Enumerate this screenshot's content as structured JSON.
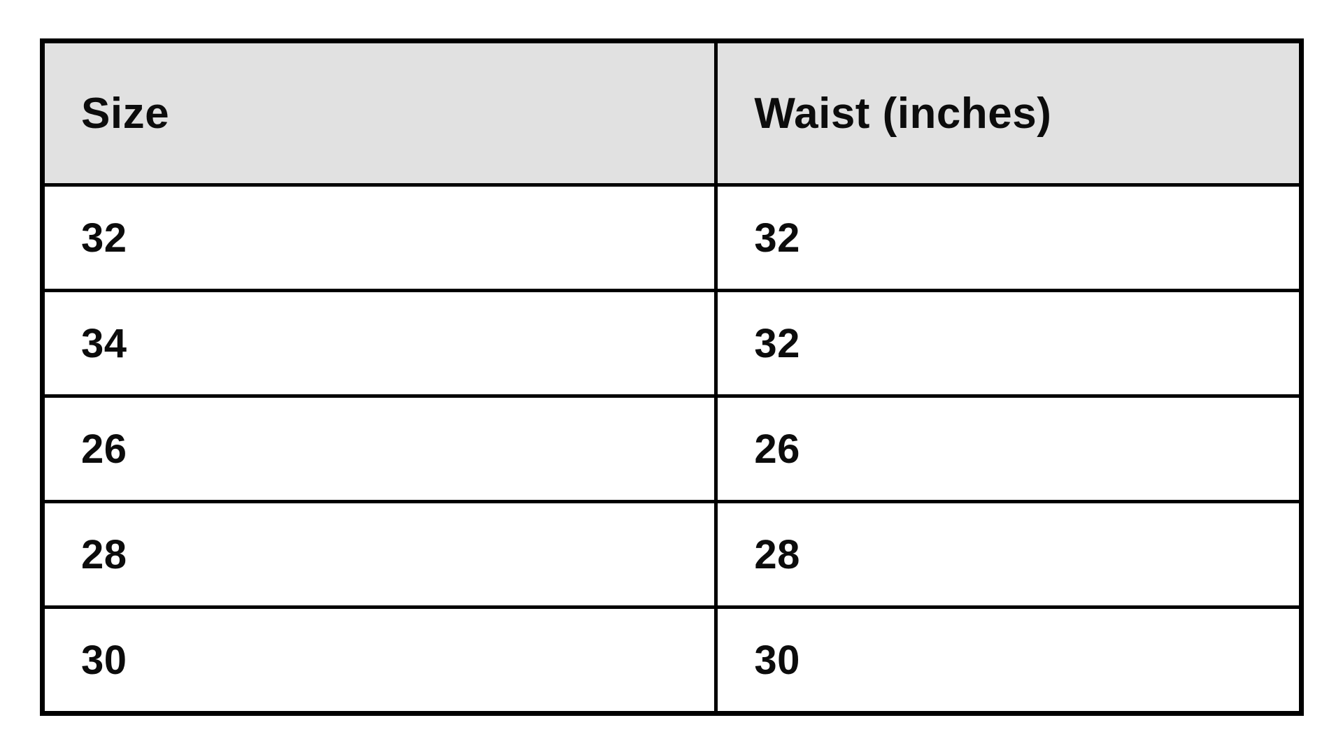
{
  "chart_data": {
    "type": "table",
    "title": "",
    "columns": [
      "Size",
      "Waist (inches)"
    ],
    "rows": [
      [
        "32",
        "32"
      ],
      [
        "34",
        "32"
      ],
      [
        "26",
        "26"
      ],
      [
        "28",
        "28"
      ],
      [
        "30",
        "30"
      ]
    ]
  },
  "colors": {
    "page_bg": "#ffffff",
    "header_bg": "#e1e1e1",
    "row_bg": "#ffffff",
    "border": "#000000",
    "text": "#0c0c0c"
  }
}
